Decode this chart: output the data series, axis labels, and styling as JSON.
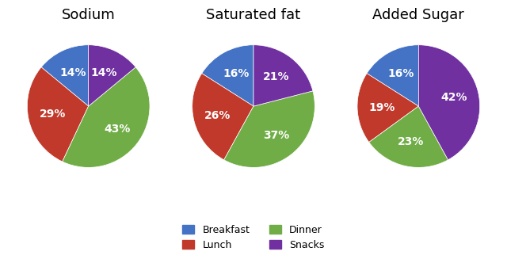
{
  "charts": [
    {
      "title": "Sodium",
      "values": [
        14,
        29,
        43,
        14
      ],
      "labels": [
        "Breakfast",
        "Lunch",
        "Dinner",
        "Snacks"
      ],
      "pct_labels": [
        "14%",
        "29%",
        "43%",
        "14%"
      ]
    },
    {
      "title": "Saturated fat",
      "values": [
        16,
        26,
        37,
        21
      ],
      "labels": [
        "Breakfast",
        "Lunch",
        "Dinner",
        "Snacks"
      ],
      "pct_labels": [
        "16%",
        "26%",
        "37%",
        "21%"
      ]
    },
    {
      "title": "Added Sugar",
      "values": [
        16,
        19,
        23,
        42
      ],
      "labels": [
        "Breakfast",
        "Lunch",
        "Dinner",
        "Snacks"
      ],
      "pct_labels": [
        "16%",
        "19%",
        "23%",
        "42%"
      ]
    }
  ],
  "colors": [
    "#4472C4",
    "#C0392B",
    "#70AD47",
    "#7030A0"
  ],
  "legend_labels": [
    "Breakfast",
    "Lunch",
    "Dinner",
    "Snacks"
  ],
  "title_fontsize": 13,
  "label_fontsize": 10,
  "background_color": "#FFFFFF"
}
